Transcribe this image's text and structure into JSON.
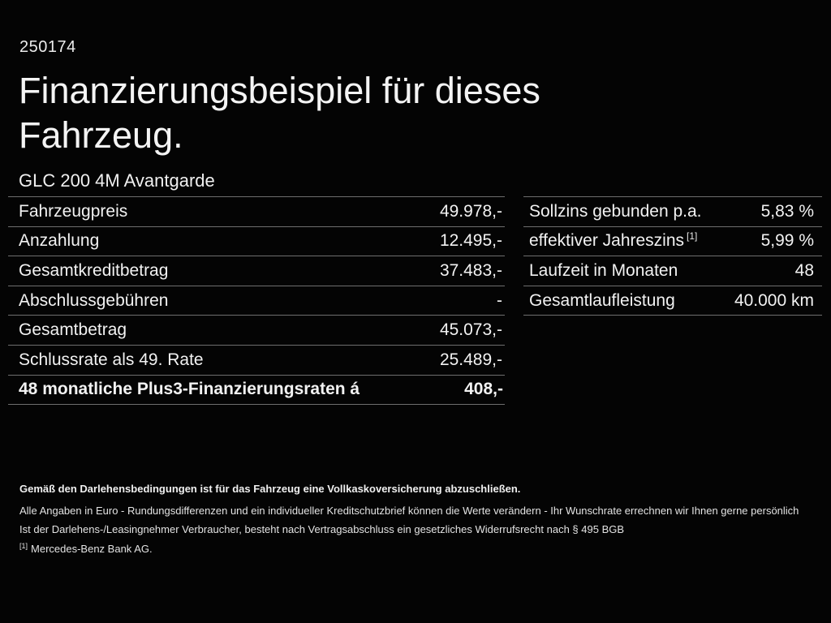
{
  "page": {
    "code": "250174",
    "title": "Finanzierungsbeispiel für dieses Fahrzeug.",
    "vehicle_model": "GLC 200 4M Avantgarde"
  },
  "finance_table": {
    "rows": [
      {
        "label": "Fahrzeugpreis",
        "value": "49.978,-"
      },
      {
        "label": "Anzahlung",
        "value": "12.495,-"
      },
      {
        "label": "Gesamtkreditbetrag",
        "value": "37.483,-"
      },
      {
        "label": "Abschlussgebühren",
        "value": "-"
      },
      {
        "label": "Gesamtbetrag",
        "value": "45.073,-"
      },
      {
        "label": "Schlussrate als 49. Rate",
        "value": "25.489,-"
      },
      {
        "label": "48 monatliche Plus3-Finanzierungsraten á",
        "value": "408,-",
        "bold": true
      }
    ]
  },
  "conditions_table": {
    "rows": [
      {
        "label": "Sollzins gebunden p.a.",
        "value": "5,83 %"
      },
      {
        "label": "effektiver Jahreszins",
        "sup": "[1]",
        "value": "5,99 %"
      },
      {
        "label": "Laufzeit in Monaten",
        "value": "48"
      },
      {
        "label": "Gesamtlaufleistung",
        "value": "40.000 km"
      }
    ]
  },
  "footer": {
    "insurance_note": "Gemäß den Darlehensbedingungen ist für das Fahrzeug eine Vollkaskoversicherung abzuschließen.",
    "disclaimer_1": "Alle Angaben in Euro - Rundungsdifferenzen und ein individueller Kreditschutzbrief können die Werte verändern - Ihr Wunschrate errechnen wir Ihnen gerne persönlich",
    "disclaimer_2": "Ist der Darlehens-/Leasingnehmer Verbraucher, besteht nach Vertragsabschluss ein gesetzliches Widerrufsrecht nach § 495 BGB",
    "footnote_marker": "[1]",
    "footnote_text": "Mercedes-Benz Bank AG."
  },
  "colors": {
    "background": "#040404",
    "text": "#f2f2f2",
    "divider": "#6e6e6e"
  }
}
